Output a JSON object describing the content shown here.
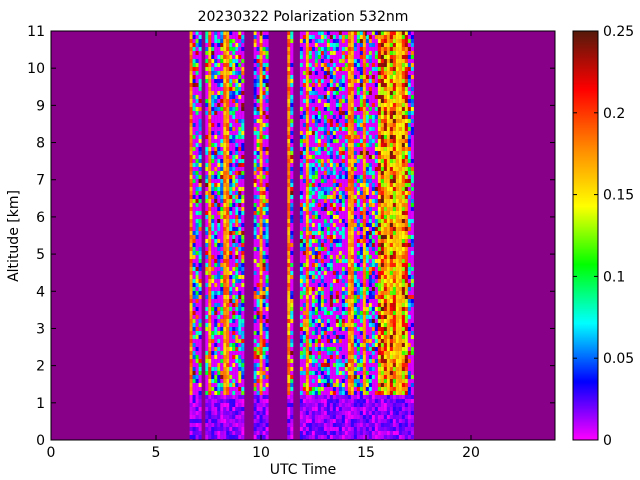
{
  "chart_data": {
    "type": "heatmap",
    "title": "20230322 Polarization 532nm",
    "xlabel": "UTC Time",
    "ylabel": "Altitude [km]",
    "xlim": [
      0,
      24
    ],
    "ylim": [
      0,
      11
    ],
    "x_ticks": [
      "0",
      "5",
      "10",
      "15",
      "20"
    ],
    "y_ticks": [
      "0",
      "1",
      "2",
      "3",
      "4",
      "5",
      "6",
      "7",
      "8",
      "9",
      "10",
      "11"
    ],
    "colorbar": {
      "range": [
        0,
        0.25
      ],
      "ticks": [
        "0",
        "0.05",
        "0.1",
        "0.15",
        "0.2",
        "0.25"
      ],
      "colormap": [
        "#ff00ff",
        "#0000ff",
        "#00ffff",
        "#00ff00",
        "#ffff00",
        "#ff8800",
        "#ff0000",
        "#551a0b"
      ]
    },
    "background_color": "#880088",
    "data_segments_utc": [
      [
        6.6,
        7.05
      ],
      [
        7.35,
        9.1
      ],
      [
        9.65,
        10.25
      ],
      [
        11.25,
        11.45
      ],
      [
        11.85,
        17.25
      ]
    ],
    "gap_intervals_utc": [
      [
        7.05,
        7.35
      ],
      [
        9.1,
        9.65
      ],
      [
        10.25,
        11.25
      ],
      [
        11.45,
        11.85
      ]
    ],
    "boundary_layer_top_km": 1.3,
    "high_depolarization_band_utc": [
      15.5,
      16.9
    ]
  }
}
